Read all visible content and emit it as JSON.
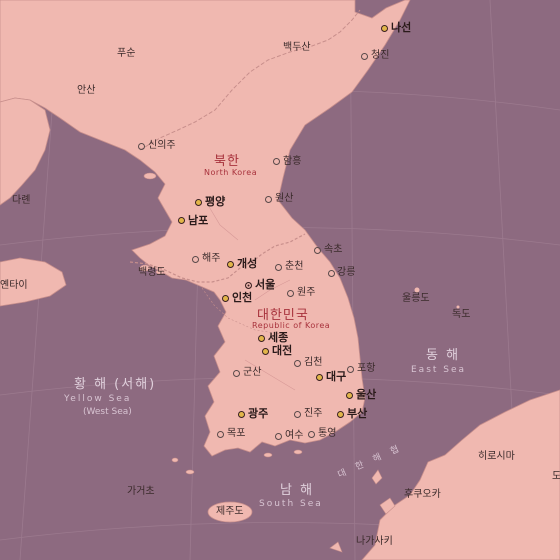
{
  "countries": {
    "north_korea": {
      "ko": "북한",
      "en": "North Korea"
    },
    "south_korea": {
      "ko": "대한민국",
      "en": "Republic of Korea"
    }
  },
  "seas": {
    "east": {
      "ko": "동 해",
      "en": "East Sea"
    },
    "yellow": {
      "ko": "황 해 (서해)",
      "en": "Yellow Sea",
      "en2": "(West Sea)"
    },
    "south": {
      "ko": "남 해",
      "en": "South Sea"
    },
    "strait": {
      "ko": "대 한 해 협"
    }
  },
  "places": {
    "nason": "나선",
    "baekdusan": "백두산",
    "cheongjin": "청진",
    "funsun": "푸순",
    "ansan": "안산",
    "sinuiju": "신의주",
    "hamheung": "함흥",
    "dalian": "다롄",
    "pyongyang": "평양",
    "wonsan": "원산",
    "nampo": "남포",
    "haeju": "해주",
    "kaesong": "개성",
    "sokcho": "속초",
    "chuncheon": "춘천",
    "gangneung": "강릉",
    "baengnyeongdo": "백령도",
    "yantai": "옌타이",
    "seoul": "서울",
    "incheon": "인천",
    "wonju": "원주",
    "ulleungdo": "울릉도",
    "dokdo": "독도",
    "sejong": "세종",
    "daejeon": "대전",
    "gimcheon": "김천",
    "pohang": "포항",
    "gunsan": "군산",
    "daegu": "대구",
    "ulsan": "울산",
    "busan": "부산",
    "gwangju": "광주",
    "jinju": "진주",
    "mokpo": "목포",
    "yeosu": "여수",
    "tongyeong": "통영",
    "hiroshima": "히로시마",
    "fukuoka": "후쿠오카",
    "jeju": "제주도",
    "nagasaki": "나가사키",
    "gagyeodo": "가거초",
    "do_edge": "도"
  },
  "colors": {
    "sea": "#8d6a80",
    "land": "#f0b8b0",
    "country_label": "#a8323c",
    "major_city_dot": "#e2b64a"
  }
}
